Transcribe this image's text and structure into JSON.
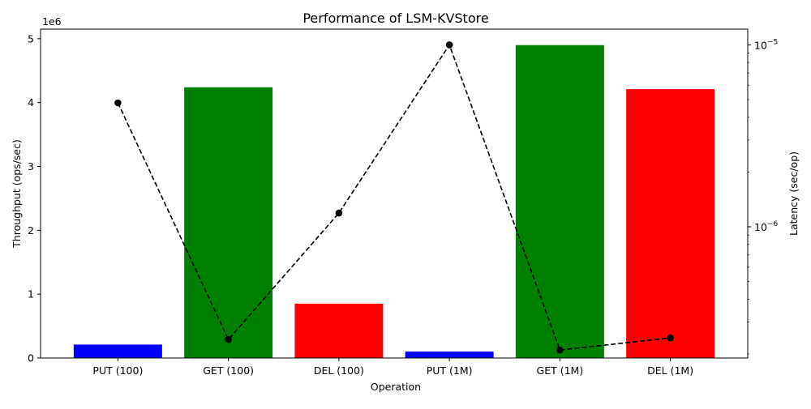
{
  "chart_data": {
    "type": "bar",
    "title": "Performance of LSM-KVStore",
    "xlabel": "Operation",
    "ylabel": "Throughput (ops/sec)",
    "y2label": "Latency (sec/op)",
    "y_offset_text": "1e6",
    "categories": [
      "PUT (100)",
      "GET (100)",
      "DEL (100)",
      "PUT (1M)",
      "GET (1M)",
      "DEL (1M)"
    ],
    "ylim": [
      0,
      5150000
    ],
    "yticks": [
      0,
      1000000,
      2000000,
      3000000,
      4000000,
      5000000
    ],
    "ytick_labels": [
      "0",
      "1",
      "2",
      "3",
      "4",
      "5"
    ],
    "y2scale": "log",
    "y2lim": [
      1.9e-07,
      1.22e-05
    ],
    "y2ticks": [
      1e-06,
      1e-05
    ],
    "y2tick_labels": [
      {
        "base": "10",
        "exp": "−6"
      },
      {
        "base": "10",
        "exp": "−5"
      }
    ],
    "grid": false,
    "series": [
      {
        "kind": "bar",
        "values": [
          210000,
          4240000,
          850000,
          100000,
          4900000,
          4210000
        ],
        "colors": [
          "#0000ff",
          "#008000",
          "#ff0000",
          "#0000ff",
          "#008000",
          "#ff0000"
        ]
      },
      {
        "kind": "line",
        "axis": "right",
        "style": "dashed",
        "marker": "circle",
        "color": "#000000",
        "values": [
          4.8e-06,
          2.4e-07,
          1.19e-06,
          1e-05,
          2.1e-07,
          2.45e-07
        ]
      }
    ]
  }
}
